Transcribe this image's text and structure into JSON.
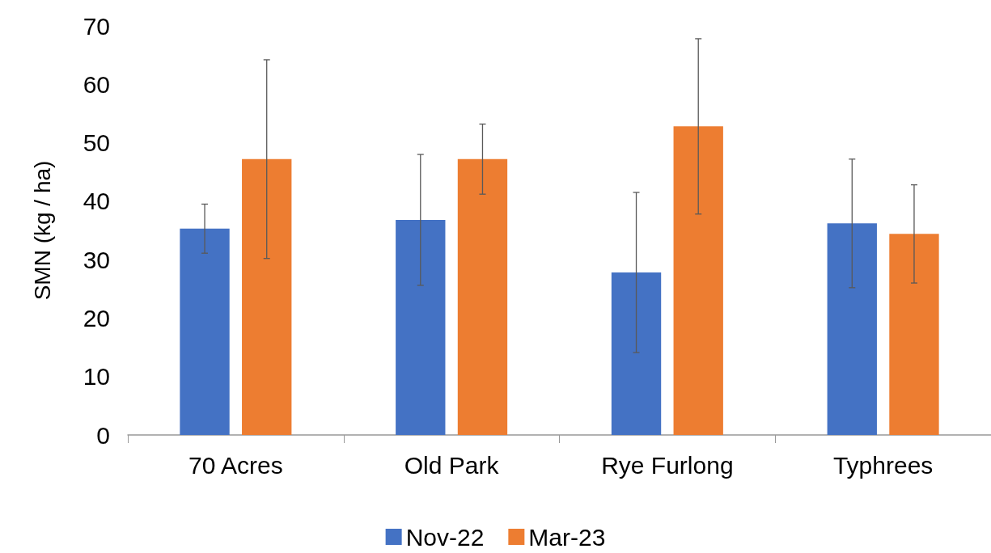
{
  "chart_data": {
    "type": "bar",
    "ylabel": "SMN (kg / ha)",
    "categories": [
      "70 Acres",
      "Old Park",
      "Rye Furlong",
      "Typhrees"
    ],
    "series": [
      {
        "name": "Nov-22",
        "color": "#4472c4",
        "values": [
          35.3,
          36.8,
          27.8,
          36.2
        ],
        "errors": [
          4.2,
          11.2,
          13.7,
          11
        ]
      },
      {
        "name": "Mar-23",
        "color": "#ed7d31",
        "values": [
          47.2,
          47.2,
          52.8,
          34.4
        ],
        "errors": [
          17,
          6,
          15,
          8.4
        ]
      }
    ],
    "ylim": [
      0,
      70
    ],
    "yticks": [
      0,
      10,
      20,
      30,
      40,
      50,
      60,
      70
    ],
    "grid": false,
    "legend": "bottom"
  }
}
